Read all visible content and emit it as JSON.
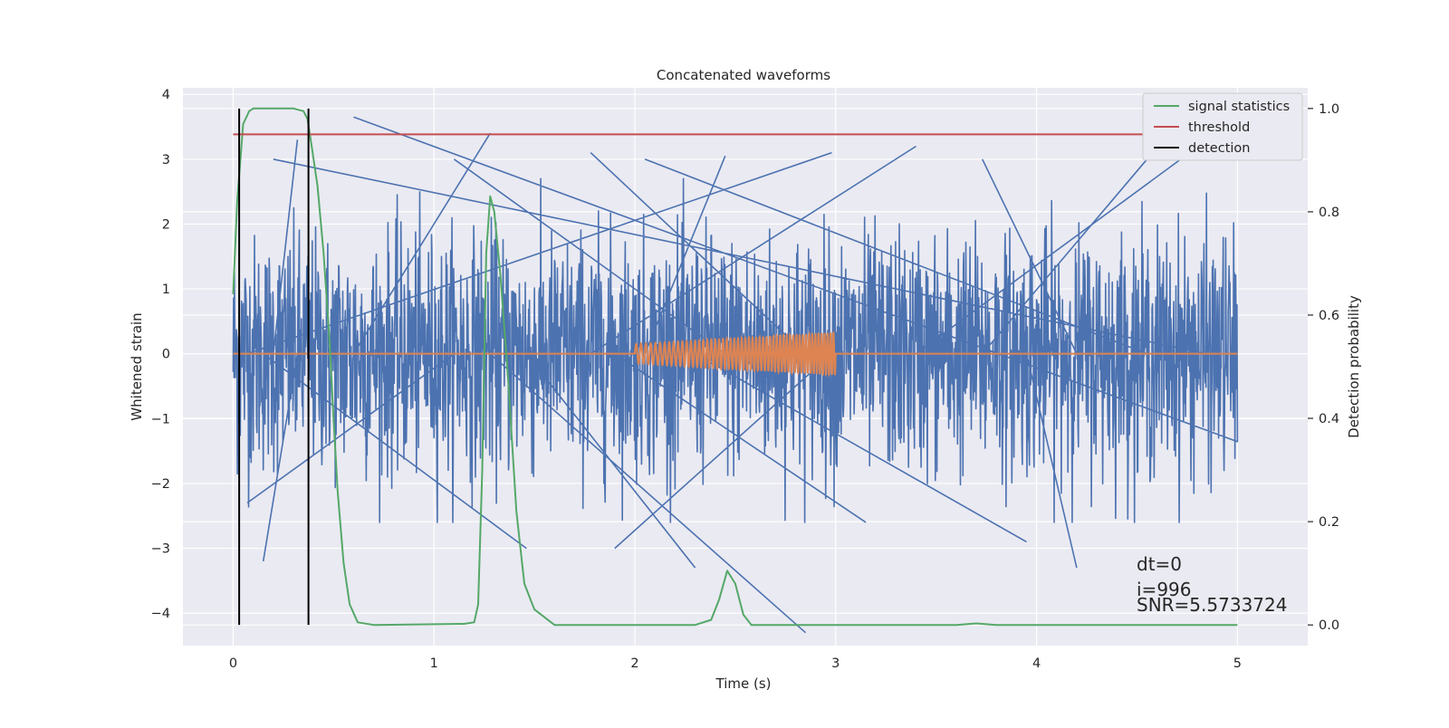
{
  "chart_data": {
    "type": "line",
    "title": "Concatenated waveforms",
    "xlabel": "Time (s)",
    "ylabel": "Whitened strain",
    "y2label": "Detection probability",
    "xlim": [
      -0.25,
      5.35
    ],
    "ylim": [
      -4.5,
      4.1
    ],
    "y2lim": [
      -0.04,
      1.04
    ],
    "x_ticks": [
      0,
      1,
      2,
      3,
      4,
      5
    ],
    "x_tick_labels": [
      "0",
      "1",
      "2",
      "3",
      "4",
      "5"
    ],
    "y_ticks": [
      -4,
      -3,
      -2,
      -1,
      0,
      1,
      2,
      3,
      4
    ],
    "y_tick_labels": [
      "−4",
      "−3",
      "−2",
      "−1",
      "0",
      "1",
      "2",
      "3",
      "4"
    ],
    "y2_ticks": [
      0,
      0.2,
      0.4,
      0.6,
      0.8,
      1.0
    ],
    "y2_tick_labels": [
      "0.0",
      "0.2",
      "0.4",
      "0.6",
      "0.8",
      "1.0"
    ],
    "grid": true,
    "legend_position": "top-right",
    "series": [
      {
        "name": "",
        "axis": "left",
        "color": "#4c72b0",
        "kind": "noise",
        "x_range": [
          0,
          5
        ],
        "peaks": [
          [
            0.6,
            3.65
          ],
          [
            1.28,
            3.4
          ],
          [
            2.85,
            -4.3
          ],
          [
            1.78,
            3.1
          ],
          [
            3.4,
            3.2
          ],
          [
            4.85,
            3.3
          ],
          [
            0.2,
            3.0
          ],
          [
            0.32,
            3.3
          ],
          [
            0.15,
            -3.2
          ],
          [
            1.46,
            -3.0
          ],
          [
            2.3,
            -3.3
          ],
          [
            3.95,
            -2.9
          ],
          [
            4.2,
            -3.3
          ],
          [
            3.73,
            3.0
          ],
          [
            4.55,
            3.0
          ],
          [
            2.05,
            3.0
          ],
          [
            2.45,
            3.05
          ],
          [
            1.1,
            3.0
          ],
          [
            0.07,
            -2.3
          ],
          [
            2.98,
            3.1
          ],
          [
            1.9,
            -3.0
          ],
          [
            3.15,
            -2.6
          ]
        ]
      },
      {
        "name": "",
        "axis": "left",
        "color": "#dd8452",
        "kind": "chirp",
        "x_range": [
          0,
          5
        ],
        "chirp_range": [
          2.0,
          3.0
        ],
        "amplitude_start": 0.15,
        "amplitude_end": 0.33
      },
      {
        "name": "signal statistics",
        "axis": "right",
        "color": "#55a868",
        "points": [
          [
            0.0,
            0.64
          ],
          [
            0.02,
            0.82
          ],
          [
            0.05,
            0.97
          ],
          [
            0.08,
            0.995
          ],
          [
            0.1,
            1.0
          ],
          [
            0.3,
            1.0
          ],
          [
            0.35,
            0.995
          ],
          [
            0.37,
            0.98
          ],
          [
            0.39,
            0.93
          ],
          [
            0.42,
            0.85
          ],
          [
            0.45,
            0.72
          ],
          [
            0.48,
            0.55
          ],
          [
            0.5,
            0.4
          ],
          [
            0.52,
            0.26
          ],
          [
            0.55,
            0.12
          ],
          [
            0.58,
            0.04
          ],
          [
            0.62,
            0.005
          ],
          [
            0.7,
            0.0
          ],
          [
            1.15,
            0.002
          ],
          [
            1.2,
            0.005
          ],
          [
            1.22,
            0.04
          ],
          [
            1.24,
            0.3
          ],
          [
            1.26,
            0.72
          ],
          [
            1.28,
            0.83
          ],
          [
            1.3,
            0.8
          ],
          [
            1.33,
            0.68
          ],
          [
            1.37,
            0.47
          ],
          [
            1.41,
            0.22
          ],
          [
            1.45,
            0.08
          ],
          [
            1.5,
            0.03
          ],
          [
            1.6,
            0.0
          ],
          [
            2.3,
            0.0
          ],
          [
            2.38,
            0.01
          ],
          [
            2.42,
            0.05
          ],
          [
            2.46,
            0.105
          ],
          [
            2.5,
            0.08
          ],
          [
            2.54,
            0.02
          ],
          [
            2.58,
            0.0
          ],
          [
            3.6,
            0.0
          ],
          [
            3.7,
            0.003
          ],
          [
            3.8,
            0.0
          ],
          [
            5.0,
            0.0
          ]
        ]
      },
      {
        "name": "threshold",
        "axis": "right",
        "color": "#c44e52",
        "points": [
          [
            0.0,
            0.95
          ],
          [
            5.0,
            0.95
          ]
        ]
      },
      {
        "name": "detection",
        "axis": "right",
        "color": "#000000",
        "vlines": [
          0.03,
          0.375
        ],
        "vline_range": [
          0.0,
          1.0
        ]
      }
    ],
    "annotations": {
      "dt": "dt=0",
      "i": "i=996",
      "snr": "SNR=5.5733724"
    }
  }
}
